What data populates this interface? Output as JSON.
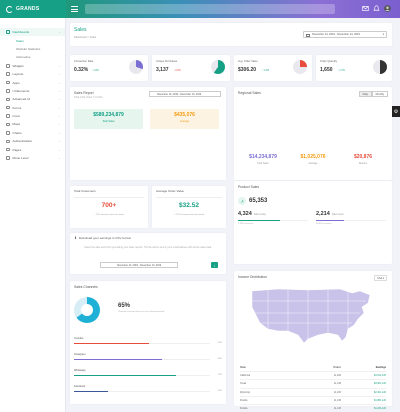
{
  "app": {
    "logo_text": "GRANDS"
  },
  "sidebar": {
    "items": [
      {
        "label": "Dashboards",
        "active": true
      },
      {
        "label": "Sales",
        "sub": true,
        "selected": true
      },
      {
        "label": "Website Statistics",
        "sub": true
      },
      {
        "label": "Alternative",
        "sub": true
      },
      {
        "label": "Widgets"
      },
      {
        "label": "Layouts"
      },
      {
        "label": "Apps"
      },
      {
        "label": "UI Elements"
      },
      {
        "label": "Advanced UI"
      },
      {
        "label": "Forms"
      },
      {
        "label": "Icons"
      },
      {
        "label": "Maps"
      },
      {
        "label": "Charts"
      },
      {
        "label": "Authentication"
      },
      {
        "label": "Pages"
      },
      {
        "label": "Menu Level"
      }
    ]
  },
  "header": {
    "title": "Sales",
    "breadcrumb": "Dashboard > Sales",
    "date_range": "November 14, 2019 - November 13, 2019"
  },
  "stats": [
    {
      "label": "Conversion Rate",
      "value": "0.32%",
      "change": "1.2%",
      "change_dir": "up",
      "pie_pct": 30,
      "color": "#7b6fd4"
    },
    {
      "label": "Unique Purchases",
      "value": "3,137",
      "change": "0.8%",
      "change_dir": "down",
      "pie_pct": 60,
      "color": "#16a085"
    },
    {
      "label": "Avg. Order Value",
      "value": "$306.20",
      "change": "1.3%",
      "change_dir": "up",
      "pie_pct": 25,
      "color": "#e74c3c"
    },
    {
      "label": "Order Quantity",
      "value": "1,650",
      "change": "1.7%",
      "change_dir": "up",
      "pie_pct": 50,
      "color": "#333333"
    }
  ],
  "sales_report": {
    "title": "Sales Report",
    "subtitle": "Total profit of last 7 months",
    "date_range": "November 14, 2019 - November 13, 2019",
    "total": {
      "value": "$589,234,879",
      "label": "Total Sales"
    },
    "average": {
      "value": "$435,076",
      "label": "Average"
    }
  },
  "regional": {
    "title": "Regional Sales",
    "btn_daily": "Daily",
    "btn_monthly": "Monthly",
    "stats": [
      {
        "value": "$14,234,879",
        "label": "Total Sales",
        "color": "#7b6fd4"
      },
      {
        "value": "$1,025,076",
        "label": "Average",
        "color": "#f39c12"
      },
      {
        "value": "$20,876",
        "label": "Returns",
        "color": "#e74c3c"
      }
    ]
  },
  "total_customers": {
    "title": "Total Customers",
    "value": "700+",
    "sub": "↑ 12% increase from last week"
  },
  "avg_order": {
    "title": "Average Order Value",
    "value": "$32.52",
    "sub": "↑ 4.2% increase from last week"
  },
  "csv": {
    "title": "Download your earnings in CSV format",
    "desc": "Select the date period for generating your sales reports. The file will be sent to your email address with all the sales data.",
    "date_range": "November 14, 2019 - November 13, 2019",
    "btn_icon": "↓"
  },
  "sales_channels": {
    "title": "Sales Channels",
    "value": "65%",
    "desc": "Channel revenue shares for the selected period.",
    "channels": [
      {
        "name": "Youtube",
        "pct": 55,
        "pct_label": "55%",
        "color": "#e74c3c"
      },
      {
        "name": "Instagram",
        "pct": 65,
        "pct_label": "65%",
        "color": "#7b6fd4"
      },
      {
        "name": "Whatsapp",
        "pct": 75,
        "pct_label": "75%",
        "color": "#16a085"
      },
      {
        "name": "Facebook",
        "pct": 25,
        "pct_label": "25%",
        "color": "#3b5998"
      }
    ],
    "donut_pct": 65
  },
  "product_sales": {
    "title": "Product Sales",
    "value": "65,353",
    "left": {
      "value": "4,324",
      "sub": "Sales today",
      "note": "1.29% increase",
      "pct": 60,
      "color": "#16a085"
    },
    "right": {
      "value": "2,214",
      "sub": "Sales week",
      "note": "26,481 increase",
      "pct": 40,
      "color": "#7b6fd4"
    }
  },
  "income": {
    "title": "Income Distribution",
    "select": "USA",
    "columns": [
      "State",
      "Orders",
      "Earnings"
    ],
    "rows": [
      [
        "California",
        "11,452",
        "$4,512,120"
      ],
      [
        "Texas",
        "11,145",
        "$3,901,120"
      ],
      [
        "Wyoming",
        "11,234",
        "$2,401,120"
      ],
      [
        "Florida",
        "11,145",
        "$1,881,120"
      ],
      [
        "Florida",
        "11,145",
        "$1,234,120"
      ]
    ]
  },
  "icons": {
    "menu": "menu-icon",
    "mail": "mail-icon",
    "bell": "bell-icon",
    "user": "user-avatar",
    "settings": "gear-icon"
  }
}
